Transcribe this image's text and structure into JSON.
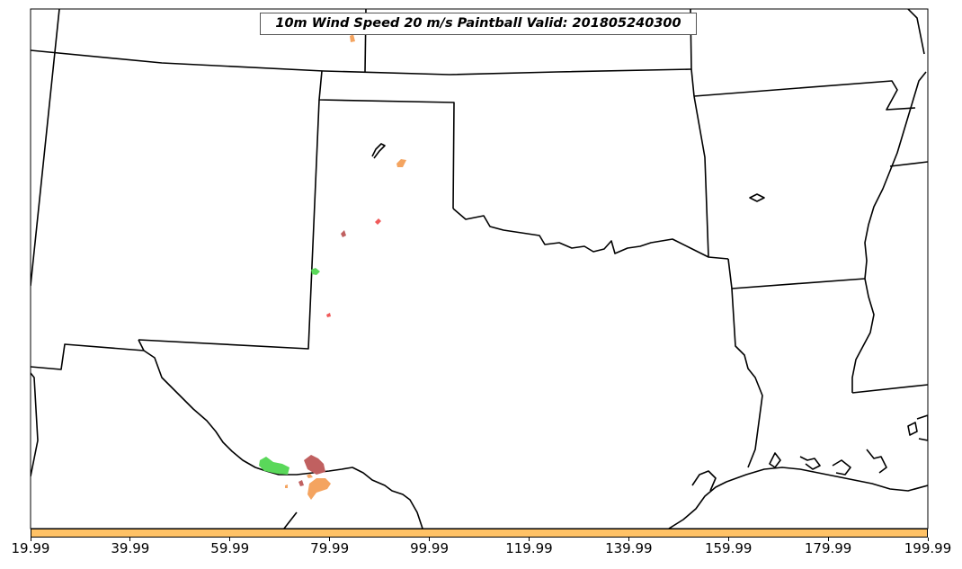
{
  "map": {
    "title": "10m Wind Speed 20 m/s Paintball Valid: 201805240300",
    "boundary_color": "#000000"
  },
  "blobs": [
    {
      "name": "orange-blob",
      "color": "#f4a460"
    },
    {
      "name": "red-blob",
      "color": "#f05a5a"
    },
    {
      "name": "dark-red-blob",
      "color": "#c06060"
    },
    {
      "name": "green-blob",
      "color": "#5ad85a"
    }
  ],
  "colorbar": {
    "color": "#ffc266",
    "ticks": [
      "19.99",
      "39.99",
      "59.99",
      "79.99",
      "99.99",
      "119.99",
      "139.99",
      "159.99",
      "179.99",
      "199.99"
    ]
  }
}
